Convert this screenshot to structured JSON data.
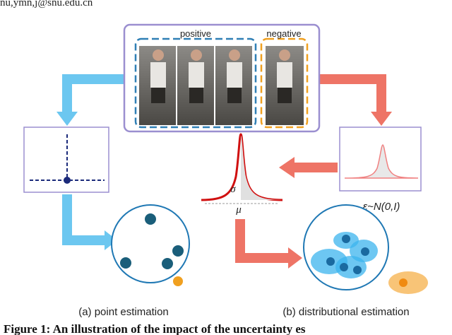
{
  "header": {
    "email": "nu,ymn,j@snu.edu.cn"
  },
  "figure": {
    "positive_label": "positive",
    "negative_label": "negative",
    "sigma": "σ",
    "mu": "μ",
    "noise": "ε~N(0,I)",
    "caption_a": "(a) point estimation",
    "caption_b": "(b) distributional estimation",
    "caption": "Figure 1: An illustration of the impact of the uncertainty es"
  }
}
